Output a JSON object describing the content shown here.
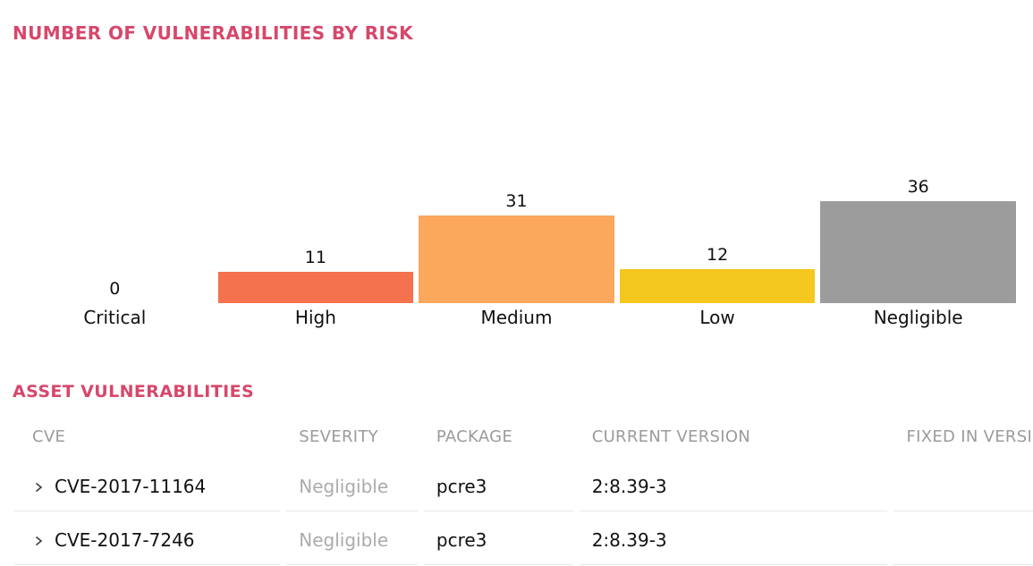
{
  "accent_color": "#D6486B",
  "chart_section": {
    "title": "NUMBER OF VULNERABILITIES BY RISK"
  },
  "chart_data": {
    "type": "bar",
    "title": "NUMBER OF VULNERABILITIES BY RISK",
    "categories": [
      "Critical",
      "High",
      "Medium",
      "Low",
      "Negligible"
    ],
    "values": [
      0,
      11,
      31,
      12,
      36
    ],
    "bar_colors": [
      "",
      "#F4724E",
      "#FBA75C",
      "#F5C81F",
      "#9C9C9C"
    ],
    "value_labels_shown": true,
    "xlabel": "",
    "ylabel": "",
    "ylim": [
      0,
      36
    ],
    "grid": "off",
    "legend": "none"
  },
  "table_section": {
    "title": "ASSET VULNERABILITIES",
    "columns": [
      "CVE",
      "SEVERITY",
      "PACKAGE",
      "CURRENT VERSION",
      "FIXED IN VERSION"
    ],
    "rows": [
      {
        "cve": "CVE-2017-11164",
        "severity": "Negligible",
        "package": "pcre3",
        "current_version": "2:8.39-3",
        "fixed_in_version": ""
      },
      {
        "cve": "CVE-2017-7246",
        "severity": "Negligible",
        "package": "pcre3",
        "current_version": "2:8.39-3",
        "fixed_in_version": ""
      }
    ]
  },
  "icons": {
    "row_expander": "chevron-right-icon"
  },
  "colors": {
    "section_title": "#D6486B",
    "table_header_text": "#9B9B9B",
    "severity_text": "#ABABAB",
    "divider": "#E9E9E9",
    "chevron": "#3C3C3C"
  }
}
